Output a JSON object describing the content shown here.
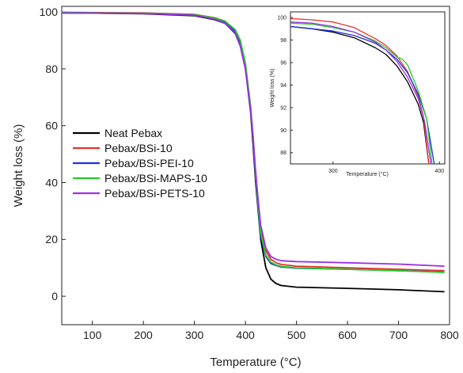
{
  "chart_data": [
    {
      "type": "line",
      "xlabel": "Temperature (°C)",
      "ylabel": "Weight loss (%)",
      "xlim": [
        40,
        800
      ],
      "ylim": [
        -10,
        102
      ],
      "xticks": [
        100,
        200,
        300,
        400,
        500,
        600,
        700,
        800
      ],
      "yticks": [
        0,
        20,
        40,
        60,
        80,
        100
      ],
      "grid": false,
      "legend_position": "center-left",
      "series": [
        {
          "name": "Neat Pebax",
          "color": "#000000",
          "x": [
            40,
            200,
            300,
            340,
            360,
            380,
            390,
            400,
            410,
            415,
            420,
            425,
            430,
            440,
            450,
            460,
            470,
            500,
            600,
            700,
            790
          ],
          "y": [
            99.7,
            99.4,
            98.7,
            97.3,
            96,
            92.5,
            88,
            80,
            65,
            53,
            40,
            30,
            20,
            10,
            6,
            4.5,
            3.8,
            3.2,
            2.8,
            2.3,
            1.6
          ]
        },
        {
          "name": "Pebax/BSi-10",
          "color": "#e8332b",
          "x": [
            40,
            200,
            300,
            340,
            360,
            380,
            390,
            400,
            410,
            415,
            420,
            425,
            430,
            440,
            450,
            460,
            470,
            500,
            600,
            700,
            790
          ],
          "y": [
            99.9,
            99.7,
            99.2,
            98,
            96.8,
            93.5,
            89,
            81,
            66,
            55,
            42,
            32,
            23,
            16,
            13,
            11.8,
            11.2,
            10.6,
            10,
            9.5,
            9
          ]
        },
        {
          "name": "Pebax/BSi-PEI-10",
          "color": "#1f2fe0",
          "x": [
            40,
            200,
            300,
            340,
            360,
            380,
            390,
            400,
            410,
            415,
            420,
            425,
            430,
            440,
            450,
            460,
            470,
            500,
            600,
            700,
            790
          ],
          "y": [
            99.8,
            99.5,
            98.9,
            97.6,
            96.4,
            93.2,
            89,
            81,
            66,
            55,
            42,
            31,
            21,
            14,
            11.5,
            10.8,
            10.3,
            9.9,
            9.5,
            9,
            8.5
          ]
        },
        {
          "name": "Pebax/BSi-MAPS-10",
          "color": "#22cc22",
          "x": [
            40,
            200,
            300,
            340,
            360,
            380,
            390,
            400,
            410,
            415,
            420,
            425,
            430,
            440,
            450,
            460,
            470,
            500,
            600,
            700,
            790
          ],
          "y": [
            99.8,
            99.6,
            99.1,
            97.9,
            96.8,
            93.8,
            90,
            82,
            67,
            56,
            43,
            32,
            22,
            14.5,
            12,
            11,
            10.5,
            10,
            9.5,
            9,
            8.4
          ]
        },
        {
          "name": "Pebax/BSi-PETS-10",
          "color": "#9b30e8",
          "x": [
            40,
            200,
            300,
            340,
            360,
            380,
            390,
            400,
            410,
            415,
            420,
            425,
            430,
            440,
            450,
            460,
            470,
            500,
            600,
            700,
            790
          ],
          "y": [
            99.7,
            99.5,
            98.9,
            97.5,
            96,
            92.8,
            88,
            80,
            66,
            56,
            44,
            34,
            25,
            17,
            14,
            13,
            12.5,
            12.2,
            11.8,
            11.3,
            10.6
          ]
        }
      ]
    },
    {
      "type": "line",
      "xlabel": "Temperature (°C)",
      "ylabel": "Weight loss (%)",
      "xlim": [
        260,
        405
      ],
      "ylim": [
        87,
        100.5
      ],
      "xticks": [
        300,
        400
      ],
      "yticks": [
        88,
        90,
        92,
        94,
        96,
        98,
        100
      ],
      "grid": false,
      "series": [
        {
          "color": "#000000",
          "x": [
            260,
            280,
            300,
            320,
            340,
            350,
            360,
            370,
            380,
            385,
            390
          ],
          "y": [
            99.2,
            99.0,
            98.7,
            98.2,
            97.3,
            96.7,
            95.7,
            94.3,
            92.3,
            90.7,
            87
          ]
        },
        {
          "color": "#e8332b",
          "x": [
            260,
            280,
            300,
            320,
            340,
            350,
            360,
            370,
            380,
            385,
            390
          ],
          "y": [
            99.9,
            99.8,
            99.6,
            99.1,
            98.1,
            97.5,
            96.6,
            95.2,
            93.0,
            91.2,
            87
          ]
        },
        {
          "color": "#1f2fe0",
          "x": [
            260,
            280,
            300,
            320,
            340,
            350,
            360,
            370,
            380,
            388,
            395
          ],
          "y": [
            99.2,
            99.0,
            98.8,
            98.4,
            97.7,
            97.1,
            96.3,
            95.1,
            93.2,
            91.0,
            87
          ]
        },
        {
          "color": "#22cc22",
          "x": [
            260,
            280,
            300,
            320,
            340,
            350,
            360,
            365,
            370,
            380,
            388,
            393
          ],
          "y": [
            99.5,
            99.4,
            99.1,
            98.7,
            97.9,
            97.3,
            96.5,
            96.3,
            95.8,
            93.5,
            91.0,
            87
          ]
        },
        {
          "color": "#9b30e8",
          "x": [
            260,
            280,
            300,
            320,
            340,
            350,
            360,
            370,
            380,
            386,
            392
          ],
          "y": [
            99.6,
            99.5,
            99.2,
            98.7,
            97.8,
            97.1,
            96.1,
            94.7,
            92.8,
            90.8,
            87
          ]
        }
      ]
    }
  ]
}
